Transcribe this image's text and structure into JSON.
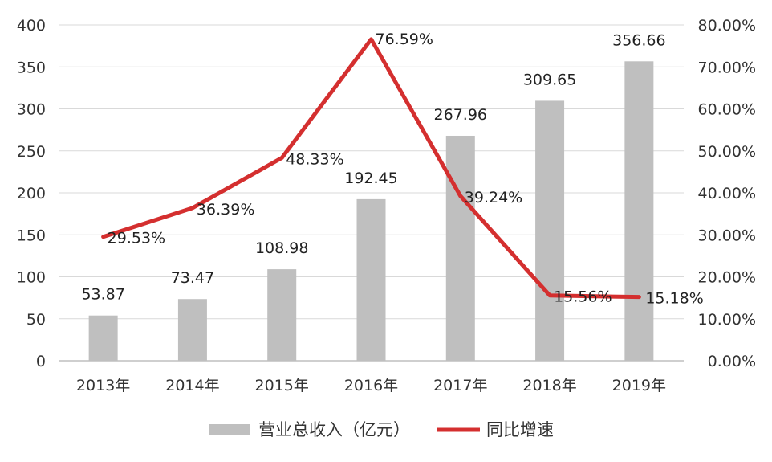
{
  "chart_data": {
    "type": "bar+line",
    "categories": [
      "2013年",
      "2014年",
      "2015年",
      "2016年",
      "2017年",
      "2018年",
      "2019年"
    ],
    "series": [
      {
        "name": "营业总收入（亿元）",
        "type": "bar",
        "axis": "left",
        "values": [
          53.87,
          73.47,
          108.98,
          192.45,
          267.96,
          309.65,
          356.66
        ],
        "labels": [
          "53.87",
          "73.47",
          "108.98",
          "192.45",
          "267.96",
          "309.65",
          "356.66"
        ],
        "color": "#BFBFBF"
      },
      {
        "name": "同比增速",
        "type": "line",
        "axis": "right",
        "values": [
          29.53,
          36.39,
          48.33,
          76.59,
          39.24,
          15.56,
          15.18
        ],
        "labels": [
          "29.53%",
          "36.39%",
          "48.33%",
          "76.59%",
          "39.24%",
          "15.56%",
          "15.18%"
        ],
        "color": "#D42F2F"
      }
    ],
    "y_left": {
      "min": 0,
      "max": 400,
      "step": 50,
      "ticks": [
        "0",
        "50",
        "100",
        "150",
        "200",
        "250",
        "300",
        "350",
        "400"
      ]
    },
    "y_right": {
      "min": 0,
      "max": 80,
      "step": 10,
      "ticks": [
        "0.00%",
        "10.00%",
        "20.00%",
        "30.00%",
        "40.00%",
        "50.00%",
        "60.00%",
        "70.00%",
        "80.00%"
      ]
    },
    "grid": true,
    "legend": {
      "position": "bottom",
      "items": [
        "营业总收入（亿元）",
        "同比增速"
      ]
    },
    "gridline_color": "#D9D9D9",
    "axis_color": "#BFBFBF"
  }
}
